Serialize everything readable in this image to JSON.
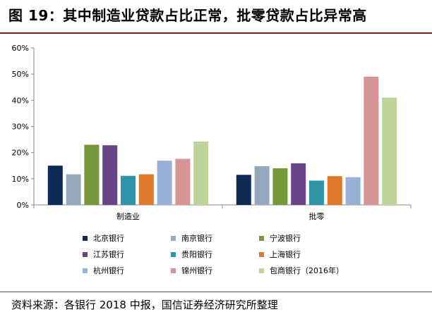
{
  "header": {
    "title": "图 19：其中制造业贷款占比正常，批零贷款占比异常高"
  },
  "footer": {
    "source": "资料来源：各银行 2018 中报，国信证券经济研究所整理"
  },
  "chart_data": {
    "type": "bar",
    "categories": [
      "制造业",
      "批零"
    ],
    "y_tick_labels": [
      "0%",
      "10%",
      "20%",
      "30%",
      "40%",
      "50%",
      "60%"
    ],
    "ylim": [
      0,
      60
    ],
    "grid": false,
    "legend_position": "bottom",
    "series": [
      {
        "name": "北京银行",
        "color": "#0d2b55",
        "values": [
          15,
          11.5
        ]
      },
      {
        "name": "南京银行",
        "color": "#97a8bd",
        "values": [
          11.7,
          14.8
        ]
      },
      {
        "name": "宁波银行",
        "color": "#77963a",
        "values": [
          23,
          14
        ]
      },
      {
        "name": "江苏银行",
        "color": "#664487",
        "values": [
          22.8,
          15.9
        ]
      },
      {
        "name": "贵阳银行",
        "color": "#2f94a8",
        "values": [
          11.1,
          9.3
        ]
      },
      {
        "name": "上海银行",
        "color": "#e0792b",
        "values": [
          11.7,
          11
        ]
      },
      {
        "name": "杭州银行",
        "color": "#97b1d9",
        "values": [
          16.9,
          10.6
        ]
      },
      {
        "name": "锦州银行",
        "color": "#d69594",
        "values": [
          17.6,
          49
        ]
      },
      {
        "name": "包商银行（2016年）",
        "color": "#bfd49a",
        "values": [
          24.2,
          41
        ]
      }
    ]
  }
}
